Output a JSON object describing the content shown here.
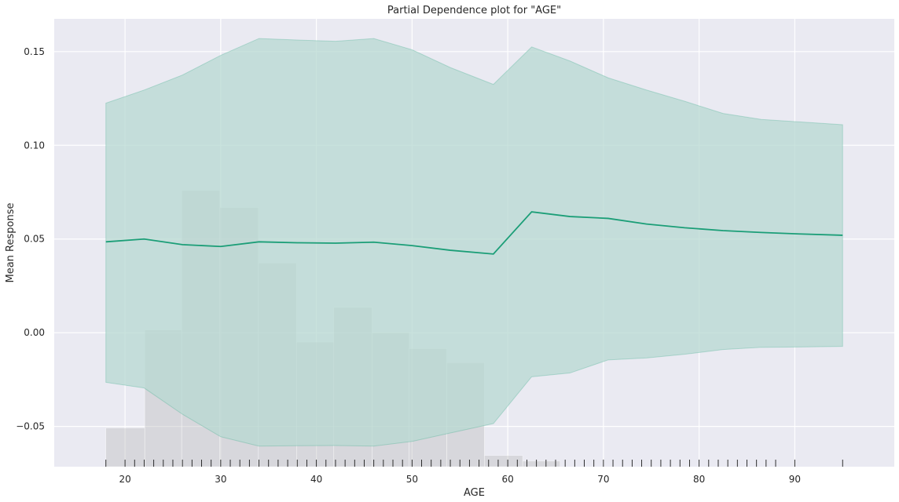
{
  "chart_data": {
    "type": "line",
    "title": "Partial Dependence plot for \"AGE\"",
    "xlabel": "AGE",
    "ylabel": "Mean Response",
    "xlim": [
      12.6,
      100.4
    ],
    "ylim": [
      -0.0715,
      0.1675
    ],
    "xticks": [
      20,
      30,
      40,
      50,
      60,
      70,
      80,
      90
    ],
    "yticks": [
      -0.05,
      0.0,
      0.05,
      0.1,
      0.15
    ],
    "ytick_labels": [
      "−0.05",
      "0.00",
      "0.05",
      "0.10",
      "0.15"
    ],
    "grid": true,
    "colors": {
      "background": "#eaeaf2",
      "grid": "#ffffff",
      "line": "#1b9e77",
      "band": "#b7d8d2",
      "hist": "#c0c0c0",
      "rug": "#1a1a1a"
    },
    "series": [
      {
        "x": [
          18,
          22,
          26,
          30,
          34,
          38,
          42,
          46,
          50,
          54,
          58.5,
          62.5,
          66.5,
          70.5,
          74.5,
          78.5,
          82.5,
          86.5,
          90.5,
          95
        ],
        "mean": [
          0.0485,
          0.05,
          0.047,
          0.046,
          0.0485,
          0.048,
          0.0478,
          0.0483,
          0.0465,
          0.044,
          0.042,
          0.0645,
          0.062,
          0.061,
          0.058,
          0.056,
          0.0545,
          0.0535,
          0.0527,
          0.052
        ],
        "upper": [
          0.1225,
          0.1295,
          0.1375,
          0.148,
          0.157,
          0.1562,
          0.1555,
          0.157,
          0.151,
          0.1415,
          0.1325,
          0.1525,
          0.145,
          0.136,
          0.1295,
          0.1235,
          0.117,
          0.1138,
          0.1125,
          0.111
        ],
        "lower": [
          -0.0265,
          -0.0295,
          -0.0435,
          -0.0555,
          -0.0605,
          -0.0603,
          -0.0602,
          -0.0605,
          -0.058,
          -0.0535,
          -0.0485,
          -0.0235,
          -0.0215,
          -0.0145,
          -0.0135,
          -0.0115,
          -0.009,
          -0.0078,
          -0.0076,
          -0.0073
        ]
      }
    ],
    "histogram": {
      "bin_edges": [
        18,
        22.06,
        25.92,
        29.91,
        33.94,
        37.92,
        41.82,
        45.81,
        49.7,
        53.62,
        57.56,
        61.56,
        65.47
      ],
      "tops": [
        -0.0508,
        0.0015,
        0.076,
        0.0668,
        0.0372,
        -0.005,
        0.0135,
        0.0,
        -0.0085,
        -0.016,
        -0.0655,
        -0.0685
      ]
    },
    "rug_x": [
      18,
      20,
      21,
      22,
      23,
      24,
      25,
      26,
      27,
      28,
      29,
      30,
      31,
      32,
      33,
      34,
      35,
      36,
      37,
      38,
      39,
      40,
      41,
      42,
      43,
      44,
      45,
      46,
      47,
      48,
      49,
      50,
      51,
      52,
      53,
      54,
      55,
      56,
      57,
      58,
      59,
      60,
      61,
      62,
      63,
      64,
      65,
      66,
      67,
      68,
      69,
      70,
      71,
      72,
      73,
      74,
      75,
      76,
      77,
      78,
      79,
      80,
      81,
      82,
      83,
      84,
      85,
      86,
      87,
      88,
      90,
      95
    ]
  }
}
